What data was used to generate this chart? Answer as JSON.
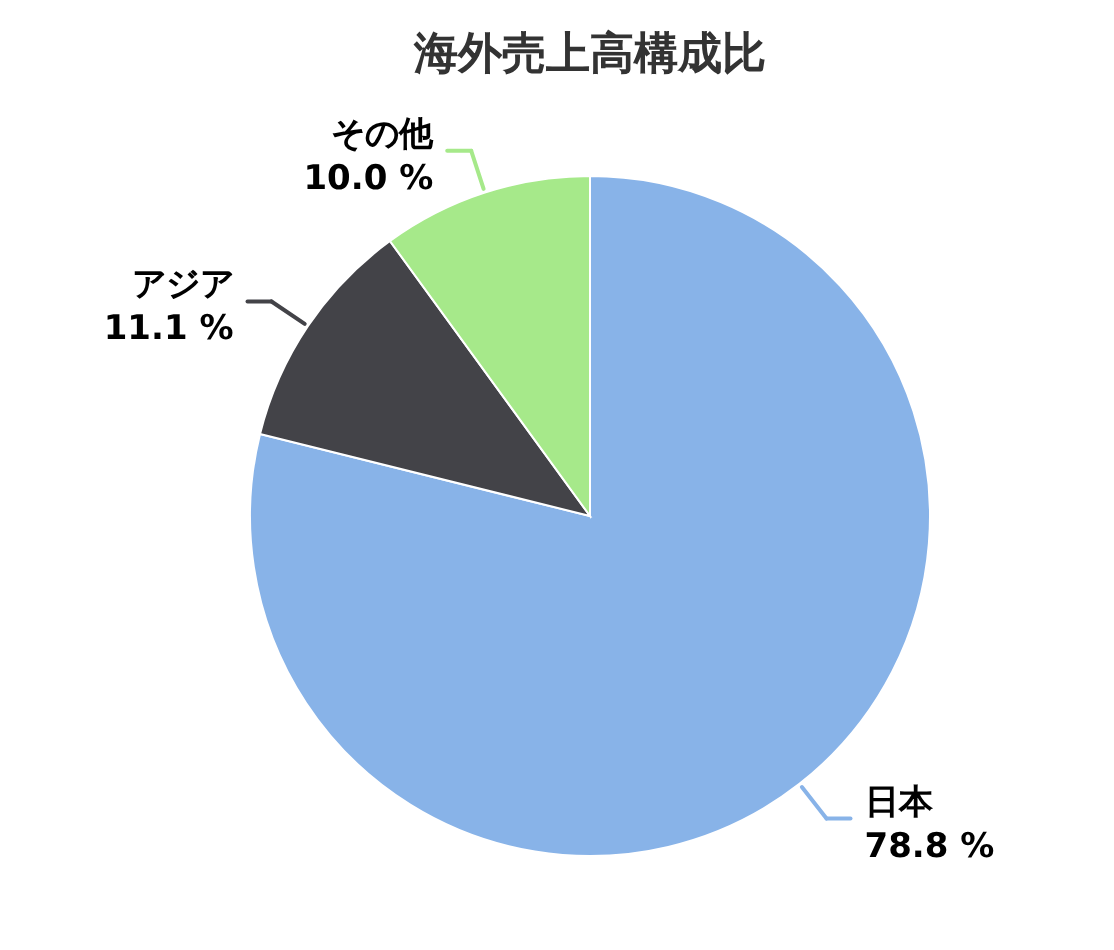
{
  "chart_data": {
    "type": "pie",
    "title": "海外売上高構成比",
    "categories": [
      "日本",
      "アジア",
      "その他"
    ],
    "values": [
      78.8,
      11.1,
      10.0
    ],
    "value_labels": [
      "78.8 %",
      "11.1 %",
      "10.0 %"
    ],
    "colors": [
      "#88b3e8",
      "#434348",
      "#a6e98a"
    ]
  }
}
